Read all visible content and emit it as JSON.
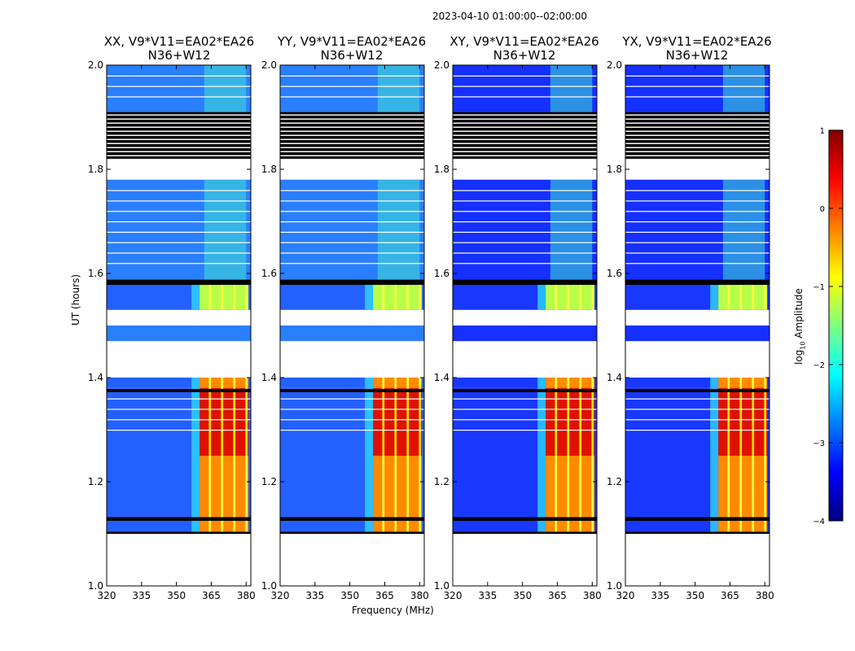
{
  "figure": {
    "suptitle": "2023-04-10  01:00:00--02:00:00",
    "ylabel": "UT (hours)",
    "xlabel": "Frequency (MHz)",
    "colorbar": {
      "label_prefix": "log",
      "label_sub": "10",
      "label_suffix": " Amplitude",
      "range": [
        -4,
        1
      ],
      "ticks": [
        1,
        0,
        -1,
        -2,
        -3,
        -4
      ],
      "tick_labels": [
        "1",
        "0",
        "−1",
        "−2",
        "−3",
        "−4"
      ],
      "colormap": "jet",
      "jet_stops": [
        "#00007f",
        "#0000ff",
        "#007fff",
        "#00ffff",
        "#7fff7f",
        "#ffff00",
        "#ff7f00",
        "#ff0000",
        "#7f0000"
      ]
    }
  },
  "chart_data": {
    "type": "heatmap",
    "panels": [
      {
        "pol": "XX",
        "title_line1": "XX, V9*V11=EA02*EA26",
        "title_line2": "N36+W12"
      },
      {
        "pol": "YY",
        "title_line1": "YY, V9*V11=EA02*EA26",
        "title_line2": "N36+W12"
      },
      {
        "pol": "XY",
        "title_line1": "XY, V9*V11=EA02*EA26",
        "title_line2": "N36+W12"
      },
      {
        "pol": "YX",
        "title_line1": "YX, V9*V11=EA02*EA26",
        "title_line2": "N36+W12"
      }
    ],
    "x_axis": {
      "label": "Frequency (MHz)",
      "range": [
        320,
        382
      ],
      "ticks": [
        320,
        335,
        350,
        365,
        380
      ],
      "tick_labels": [
        "320",
        "335",
        "350",
        "365",
        "380"
      ]
    },
    "y_axis": {
      "label": "UT (hours)",
      "range": [
        1.0,
        2.0
      ],
      "ticks": [
        1.0,
        1.2,
        1.4,
        1.6,
        1.8,
        2.0
      ],
      "tick_labels": [
        "1.0",
        "1.2",
        "1.4",
        "1.6",
        "1.8",
        "2.0"
      ]
    },
    "time_blocks": [
      {
        "t_start": 1.1,
        "t_end": 1.25,
        "level": "burst"
      },
      {
        "t_start": 1.25,
        "t_end": 1.38,
        "level": "burst-peak"
      },
      {
        "t_start": 1.38,
        "t_end": 1.4,
        "level": "burst"
      },
      {
        "t_start": 1.47,
        "t_end": 1.5,
        "level": "background"
      },
      {
        "t_start": 1.53,
        "t_end": 1.58,
        "level": "active"
      },
      {
        "t_start": 1.58,
        "t_end": 1.78,
        "level": "background"
      },
      {
        "t_start": 1.82,
        "t_end": 1.91,
        "level": "flagged"
      },
      {
        "t_start": 1.91,
        "t_end": 2.0,
        "level": "background"
      }
    ],
    "gaps": [
      [
        1.0,
        1.1
      ],
      [
        1.4,
        1.47
      ],
      [
        1.5,
        1.53
      ],
      [
        1.78,
        1.82
      ]
    ],
    "burst_band_mhz": [
      360,
      382
    ]
  }
}
